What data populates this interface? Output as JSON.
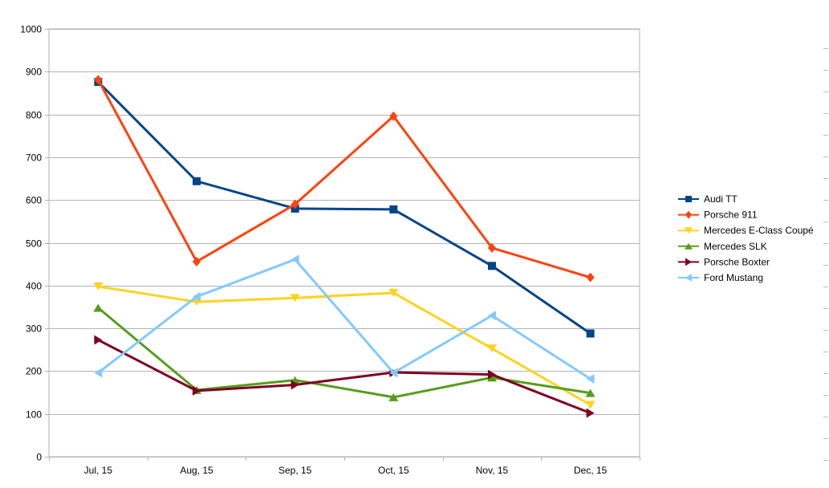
{
  "chart_data": {
    "type": "line",
    "title": "",
    "xlabel": "",
    "ylabel": "",
    "categories": [
      "Jul, 15",
      "Aug, 15",
      "Sep, 15",
      "Oct, 15",
      "Nov, 15",
      "Dec, 15"
    ],
    "ylim": [
      0,
      1000
    ],
    "yticks": [
      "0",
      "100",
      "200",
      "300",
      "400",
      "500",
      "600",
      "700",
      "800",
      "900",
      "1000"
    ],
    "grid": "horizontal",
    "legend": "right",
    "series": [
      {
        "name": "Audi TT",
        "color": "#004586",
        "marker": "square",
        "values": [
          876,
          644,
          580,
          578,
          446,
          288
        ]
      },
      {
        "name": "Porsche 911",
        "color": "#ff420e",
        "marker": "diamond",
        "values": [
          881,
          456,
          590,
          796,
          488,
          419
        ]
      },
      {
        "name": "Mercedes E-Class Coupé",
        "color": "#ffd320",
        "marker": "triangle-down",
        "values": [
          398,
          362,
          371,
          383,
          253,
          121
        ]
      },
      {
        "name": "Mercedes SLK",
        "color": "#579d1c",
        "marker": "triangle-up",
        "values": [
          348,
          156,
          179,
          139,
          185,
          149
        ]
      },
      {
        "name": "Porsche Boxter",
        "color": "#7e0021",
        "marker": "triangle-right",
        "values": [
          273,
          154,
          168,
          197,
          192,
          102
        ]
      },
      {
        "name": "Ford Mustang",
        "color": "#83caff",
        "marker": "triangle-left",
        "values": [
          196,
          374,
          461,
          196,
          330,
          182
        ]
      }
    ]
  }
}
